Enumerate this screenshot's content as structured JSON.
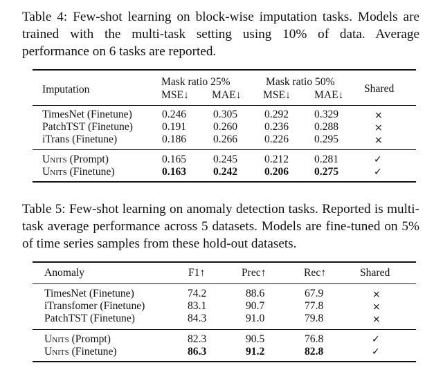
{
  "table4": {
    "caption": "Table 4: Few-shot learning on block-wise imputation tasks. Models are trained with the multi-task setting using 10% of data. Average performance on 6 tasks are reported.",
    "header": {
      "row_label": "Imputation",
      "group1": "Mask ratio 25%",
      "group2": "Mask ratio 50%",
      "metric_mse": "MSE↓",
      "metric_mae": "MAE↓",
      "shared": "Shared"
    },
    "rows": [
      {
        "model": "TimesNet (Finetune)",
        "v": [
          "0.246",
          "0.305",
          "0.292",
          "0.329"
        ],
        "shared": "×"
      },
      {
        "model": "PatchTST (Finetune)",
        "v": [
          "0.191",
          "0.260",
          "0.236",
          "0.288"
        ],
        "shared": "×"
      },
      {
        "model": "iTrans (Finetune)",
        "v": [
          "0.186",
          "0.266",
          "0.226",
          "0.295"
        ],
        "shared": "×"
      },
      {
        "model_prefix": "U",
        "model_sc": "nits",
        "model_suffix": " (Prompt)",
        "v": [
          "0.165",
          "0.245",
          "0.212",
          "0.281"
        ],
        "shared": "✓"
      },
      {
        "model_prefix": "U",
        "model_sc": "nits",
        "model_suffix": " (Finetune)",
        "v": [
          "0.163",
          "0.242",
          "0.206",
          "0.275"
        ],
        "shared": "✓"
      }
    ]
  },
  "table5": {
    "caption": "Table 5: Few-shot learning on anomaly detection tasks. Reported is multi-task average performance across 5 datasets. Models are fine-tuned on 5% of time series samples from these hold-out datasets.",
    "header": {
      "row_label": "Anomaly",
      "f1": "F1↑",
      "prec": "Prec↑",
      "rec": "Rec↑",
      "shared": "Shared"
    },
    "rows": [
      {
        "model": "TimesNet (Finetune)",
        "v": [
          "74.2",
          "88.6",
          "67.9"
        ],
        "shared": "×"
      },
      {
        "model": "iTransfomer (Finetune)",
        "v": [
          "83.1",
          "90.7",
          "77.8"
        ],
        "shared": "×"
      },
      {
        "model": "PatchTST (Finetune)",
        "v": [
          "84.3",
          "91.0",
          "79.8"
        ],
        "shared": "×"
      },
      {
        "model_prefix": "U",
        "model_sc": "nits",
        "model_suffix": " (Prompt)",
        "v": [
          "82.3",
          "90.5",
          "76.8"
        ],
        "shared": "✓"
      },
      {
        "model_prefix": "U",
        "model_sc": "nits",
        "model_suffix": " (Finetune)",
        "v": [
          "86.3",
          "91.2",
          "82.8"
        ],
        "shared": "✓"
      }
    ]
  }
}
